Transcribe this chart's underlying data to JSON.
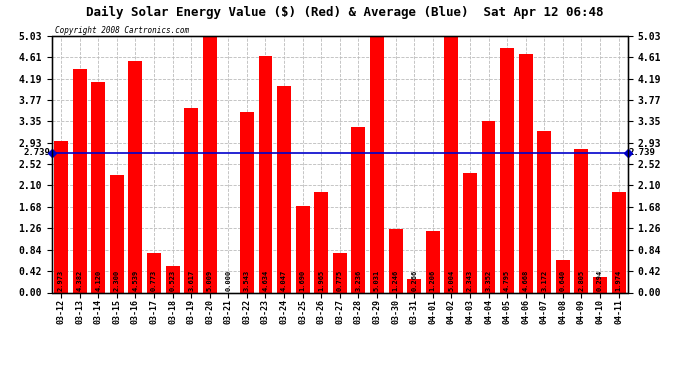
{
  "title": "Daily Solar Energy Value ($) (Red) & Average (Blue)  Sat Apr 12 06:48",
  "copyright": "Copyright 2008 Cartronics.com",
  "average": 2.739,
  "bar_color": "#FF0000",
  "avg_line_color": "#0000CC",
  "background_color": "#FFFFFF",
  "plot_bg_color": "#FFFFFF",
  "grid_color": "#AAAAAA",
  "ylim": [
    0.0,
    5.03
  ],
  "yticks": [
    0.0,
    0.42,
    0.84,
    1.26,
    1.68,
    2.1,
    2.52,
    2.93,
    3.35,
    3.77,
    4.19,
    4.61,
    5.03
  ],
  "categories": [
    "03-12",
    "03-13",
    "03-14",
    "03-15",
    "03-16",
    "03-17",
    "03-18",
    "03-19",
    "03-20",
    "03-21",
    "03-22",
    "03-23",
    "03-24",
    "03-25",
    "03-26",
    "03-27",
    "03-28",
    "03-29",
    "03-30",
    "03-31",
    "04-01",
    "04-02",
    "04-03",
    "04-04",
    "04-05",
    "04-06",
    "04-07",
    "04-08",
    "04-09",
    "04-10",
    "04-11"
  ],
  "values": [
    2.973,
    4.382,
    4.12,
    2.3,
    4.539,
    0.773,
    0.523,
    3.617,
    5.009,
    0.0,
    3.543,
    4.634,
    4.047,
    1.69,
    1.965,
    0.775,
    3.236,
    5.031,
    1.246,
    0.266,
    1.206,
    5.004,
    2.343,
    3.352,
    4.795,
    4.668,
    3.172,
    0.64,
    2.805,
    0.294,
    1.974
  ]
}
